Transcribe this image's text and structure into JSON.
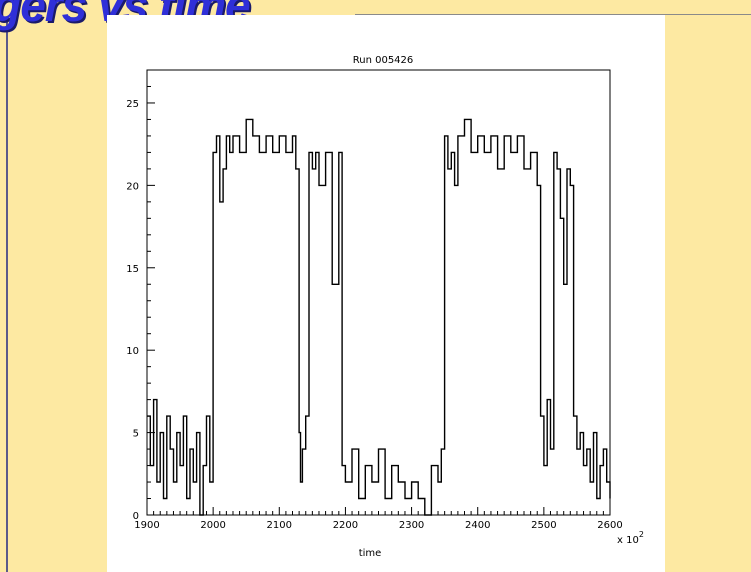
{
  "slide": {
    "title": "ggers vs time"
  },
  "chart_data": {
    "type": "line",
    "title": "Run 005426",
    "xlabel": "time",
    "ylabel": "",
    "x_multiplier_label": "x 10",
    "x_multiplier_exp": "2",
    "xlim": [
      1900,
      2600
    ],
    "ylim": [
      0,
      27
    ],
    "xticks": [
      1900,
      2000,
      2100,
      2200,
      2300,
      2400,
      2500,
      2600
    ],
    "yticks": [
      0,
      5,
      10,
      15,
      20,
      25
    ],
    "grid": false,
    "series": [
      {
        "x": [
          1900,
          1905,
          1910,
          1915,
          1920,
          1925,
          1930,
          1935,
          1940,
          1945,
          1950,
          1955,
          1960,
          1965,
          1970,
          1975,
          1980,
          1985,
          1990,
          1995,
          2000,
          2005,
          2010,
          2015,
          2020,
          2025,
          2030,
          2040,
          2050,
          2060,
          2070,
          2080,
          2090,
          2100,
          2110,
          2120,
          2125,
          2130,
          2132,
          2135,
          2140,
          2145,
          2150,
          2155,
          2160,
          2170,
          2180,
          2190,
          2195,
          2200,
          2210,
          2220,
          2230,
          2240,
          2250,
          2260,
          2270,
          2280,
          2290,
          2300,
          2310,
          2320,
          2330,
          2340,
          2345,
          2350,
          2355,
          2360,
          2365,
          2370,
          2380,
          2390,
          2400,
          2410,
          2420,
          2430,
          2440,
          2450,
          2460,
          2470,
          2480,
          2490,
          2495,
          2500,
          2505,
          2510,
          2515,
          2520,
          2525,
          2530,
          2535,
          2540,
          2545,
          2550,
          2555,
          2560,
          2565,
          2570,
          2575,
          2580,
          2585,
          2590,
          2595,
          2600
        ],
        "y": [
          6,
          3,
          7,
          2,
          5,
          1,
          6,
          4,
          2,
          5,
          3,
          6,
          1,
          4,
          2,
          5,
          0,
          3,
          6,
          2,
          22,
          23,
          19,
          21,
          23,
          22,
          23,
          22,
          24,
          23,
          22,
          23,
          22,
          23,
          22,
          23,
          21,
          5,
          2,
          4,
          6,
          22,
          21,
          22,
          20,
          22,
          14,
          22,
          3,
          2,
          4,
          1,
          3,
          2,
          4,
          1,
          3,
          2,
          1,
          2,
          1,
          0,
          3,
          2,
          4,
          23,
          21,
          22,
          20,
          23,
          24,
          22,
          23,
          22,
          23,
          21,
          23,
          22,
          23,
          21,
          22,
          20,
          6,
          3,
          7,
          4,
          22,
          21,
          18,
          14,
          21,
          20,
          6,
          4,
          5,
          3,
          4,
          2,
          5,
          1,
          3,
          4,
          2,
          1
        ]
      }
    ]
  }
}
